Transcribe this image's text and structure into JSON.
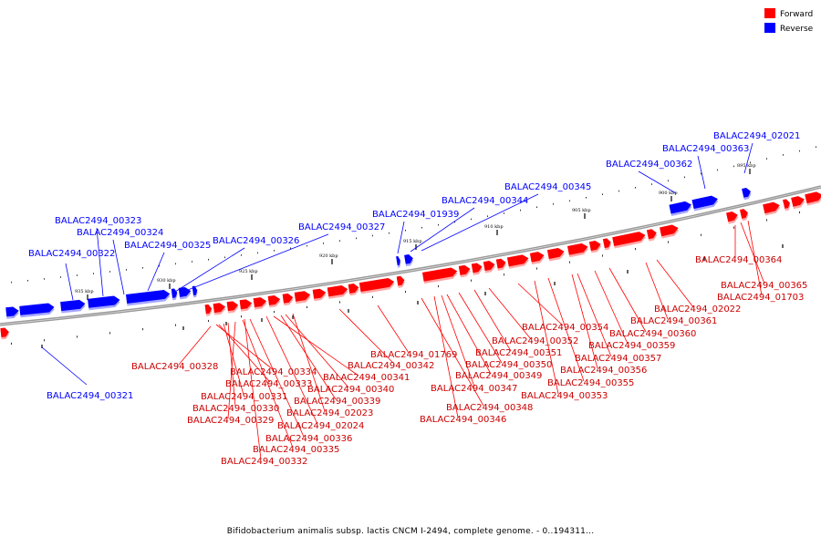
{
  "legend": [
    {
      "label": "Forward",
      "color": "#ff0000"
    },
    {
      "label": "Reverse",
      "color": "#0000ff"
    }
  ],
  "colors": {
    "forward": "#ff0000",
    "reverse": "#0000ff",
    "backbone": "#888888"
  },
  "caption": "Bifidobacterium animalis subsp. lactis CNCM I-2494, complete genome. - 0..194311...",
  "scale_ticks": [
    "895 kbp",
    "900 kbp",
    "905 kbp",
    "910 kbp",
    "915 kbp",
    "920 kbp",
    "925 kbp",
    "930 kbp",
    "935 kbp"
  ],
  "genes": {
    "reverse": [
      "BALAC2494_00321",
      "BALAC2494_00322",
      "BALAC2494_00323",
      "BALAC2494_00324",
      "BALAC2494_00325",
      "BALAC2494_00326",
      "BALAC2494_00327",
      "BALAC2494_01939",
      "BALAC2494_00344",
      "BALAC2494_00345",
      "BALAC2494_00362",
      "BALAC2494_00363",
      "BALAC2494_02021"
    ],
    "forward": [
      "BALAC2494_00328",
      "BALAC2494_00334",
      "BALAC2494_00333",
      "BALAC2494_00331",
      "BALAC2494_00330",
      "BALAC2494_00329",
      "BALAC2494_00341",
      "BALAC2494_00340",
      "BALAC2494_00339",
      "BALAC2494_02023",
      "BALAC2494_02024",
      "BALAC2494_00336",
      "BALAC2494_00335",
      "BALAC2494_00332",
      "BALAC2494_01769",
      "BALAC2494_00342",
      "BALAC2494_00349",
      "BALAC2494_00347",
      "BALAC2494_00348",
      "BALAC2494_00346",
      "BALAC2494_00351",
      "BALAC2494_00350",
      "BALAC2494_00352",
      "BALAC2494_00354",
      "BALAC2494_00353",
      "BALAC2494_00355",
      "BALAC2494_00356",
      "BALAC2494_00357",
      "BALAC2494_00359",
      "BALAC2494_00360",
      "BALAC2494_00361",
      "BALAC2494_02022",
      "BALAC2494_00364",
      "BALAC2494_00365",
      "BALAC2494_01703"
    ]
  }
}
